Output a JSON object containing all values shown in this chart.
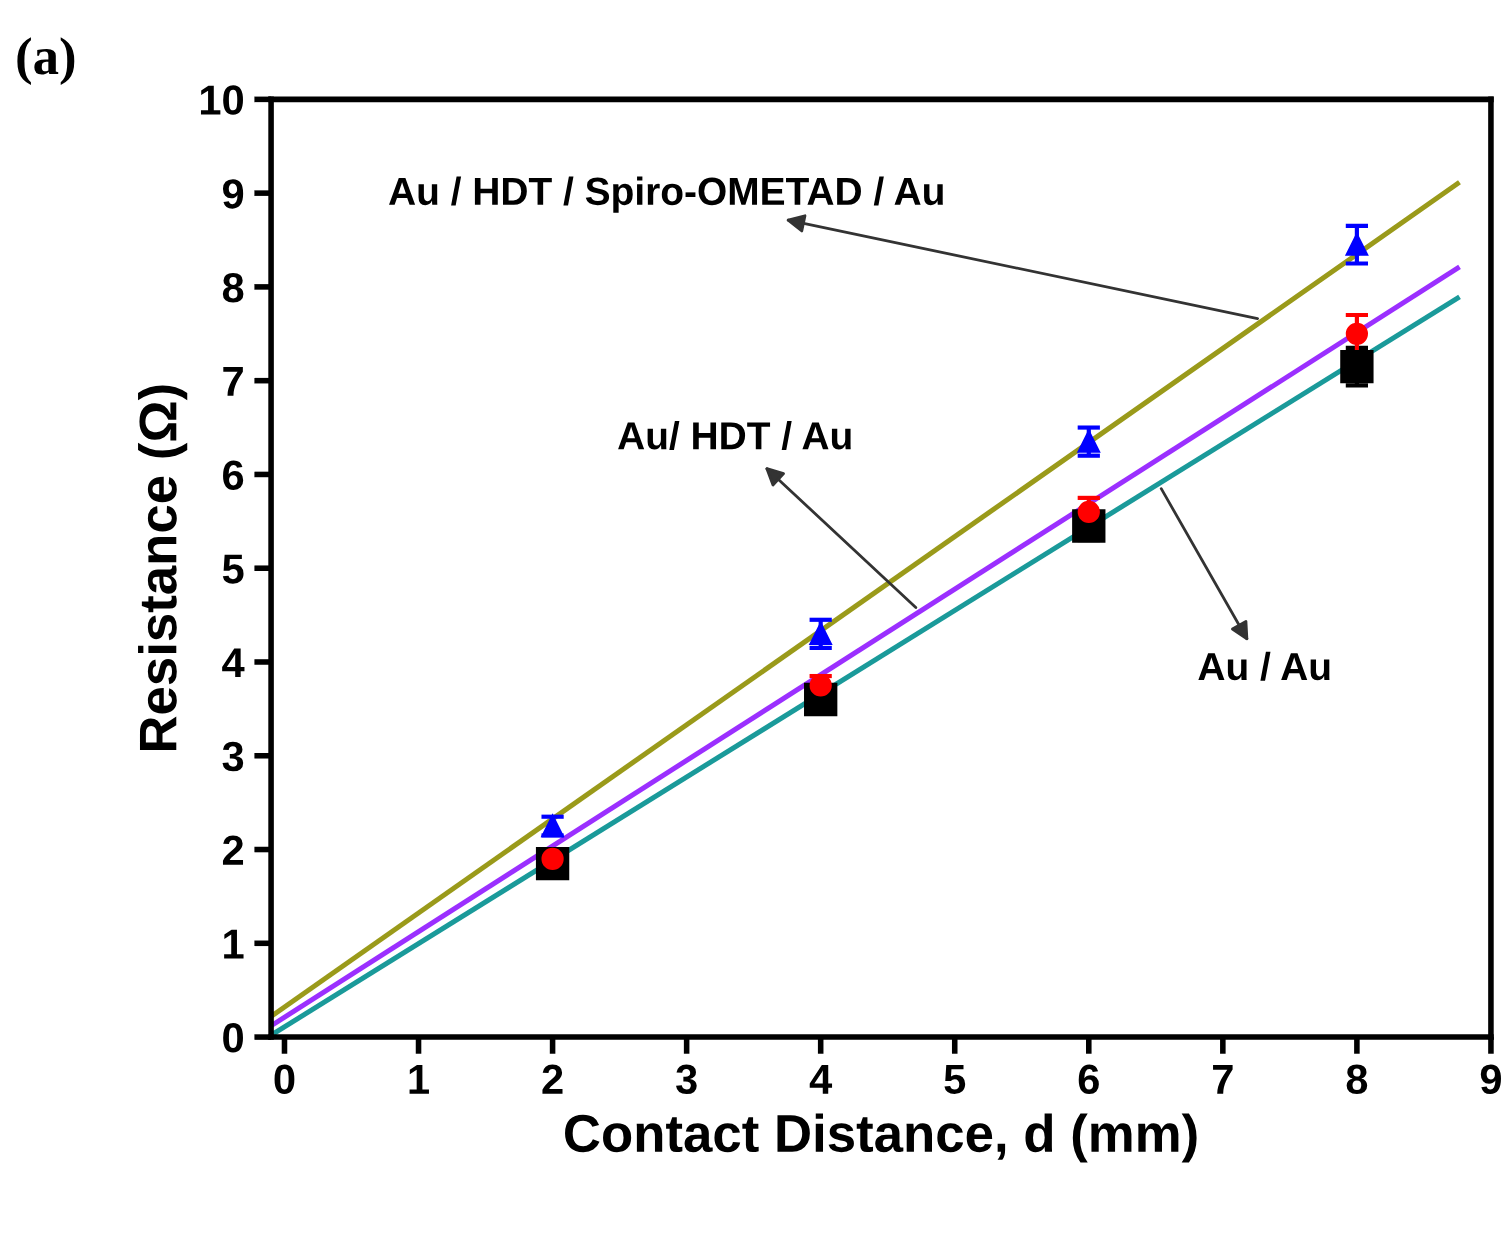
{
  "chart_data": {
    "type": "scatter",
    "title": "(a)",
    "xlabel": "Contact Distance, d (mm)",
    "ylabel": "Resistance (Ω)",
    "xlim": [
      -0.1,
      9
    ],
    "ylim": [
      0,
      10
    ],
    "xticks": [
      0,
      1,
      2,
      3,
      4,
      5,
      6,
      7,
      8,
      9
    ],
    "yticks": [
      0,
      1,
      2,
      3,
      4,
      5,
      6,
      7,
      8,
      9,
      10
    ],
    "grid": false,
    "legend": false,
    "series": [
      {
        "x": [
          2,
          4,
          6,
          8
        ],
        "values": [
          1.85,
          3.6,
          5.45,
          7.15
        ],
        "errors": [
          0.1,
          0.1,
          0.15,
          0.2
        ],
        "color": "#000000",
        "marker": "square"
      },
      {
        "x": [
          2,
          4,
          6,
          8
        ],
        "values": [
          1.9,
          3.75,
          5.6,
          7.5
        ],
        "errors": [
          0.1,
          0.1,
          0.15,
          0.2
        ],
        "color": "#ff0000",
        "marker": "circle"
      },
      {
        "x": [
          2,
          4,
          6,
          8
        ],
        "values": [
          2.25,
          4.3,
          6.35,
          8.45
        ],
        "errors": [
          0.1,
          0.15,
          0.15,
          0.2
        ],
        "color": "#0000ff",
        "marker": "triangle"
      },
      {
        "type": "line",
        "x": [
          -0.1,
          8.75
        ],
        "values": [
          0.02,
          7.88
        ],
        "color": "#1a9a9a",
        "marker": "none"
      },
      {
        "type": "line",
        "x": [
          -0.1,
          8.75
        ],
        "values": [
          0.12,
          8.2
        ],
        "color": "#9b2fff",
        "marker": "none"
      },
      {
        "type": "line",
        "x": [
          -0.1,
          8.75
        ],
        "values": [
          0.22,
          9.1
        ],
        "color": "#9a9a1a",
        "marker": "none"
      }
    ],
    "annotations": [
      {
        "text": "Au / HDT / Spiro-OMETAD / Au",
        "x": 7.3,
        "y": 7.65
      },
      {
        "text": "Au/ HDT / Au",
        "x": 4.74,
        "y": 4.54
      },
      {
        "text": "Au / Au",
        "x": 6.52,
        "y": 5.9
      }
    ]
  }
}
